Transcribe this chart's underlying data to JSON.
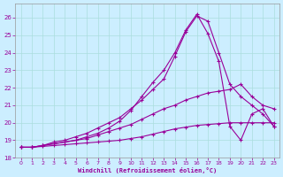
{
  "xlabel": "Windchill (Refroidissement éolien,°C)",
  "bg_color": "#cceeff",
  "grid_color": "#aadddd",
  "line_color": "#990099",
  "xlim": [
    -0.5,
    23.5
  ],
  "ylim": [
    18.0,
    26.8
  ],
  "yticks": [
    18,
    19,
    20,
    21,
    22,
    23,
    24,
    25,
    26
  ],
  "xticks": [
    0,
    1,
    2,
    3,
    4,
    5,
    6,
    7,
    8,
    9,
    10,
    11,
    12,
    13,
    14,
    15,
    16,
    17,
    18,
    19,
    20,
    21,
    22,
    23
  ],
  "lines": [
    {
      "x": [
        0,
        1,
        2,
        3,
        4,
        5,
        6,
        7,
        8,
        9,
        10,
        11,
        12,
        13,
        14,
        15,
        16,
        17,
        18,
        19,
        20,
        21,
        22,
        23
      ],
      "y": [
        18.6,
        18.6,
        18.65,
        18.7,
        18.75,
        18.8,
        18.85,
        18.9,
        18.95,
        19.0,
        19.1,
        19.2,
        19.35,
        19.5,
        19.65,
        19.75,
        19.85,
        19.9,
        19.95,
        20.0,
        20.0,
        20.0,
        20.0,
        20.0
      ]
    },
    {
      "x": [
        0,
        1,
        2,
        3,
        4,
        5,
        6,
        7,
        8,
        9,
        10,
        11,
        12,
        13,
        14,
        15,
        16,
        17,
        18,
        19,
        20,
        21,
        22,
        23
      ],
      "y": [
        18.6,
        18.6,
        18.7,
        18.8,
        18.9,
        19.0,
        19.1,
        19.3,
        19.5,
        19.7,
        19.9,
        20.2,
        20.5,
        20.8,
        21.0,
        21.3,
        21.5,
        21.7,
        21.8,
        21.9,
        22.2,
        21.5,
        21.0,
        20.8
      ]
    },
    {
      "x": [
        0,
        1,
        2,
        3,
        4,
        5,
        6,
        7,
        8,
        9,
        10,
        11,
        12,
        13,
        14,
        15,
        16,
        17,
        18,
        19,
        20,
        21,
        22,
        23
      ],
      "y": [
        18.6,
        18.6,
        18.7,
        18.9,
        19.0,
        19.2,
        19.4,
        19.7,
        20.0,
        20.3,
        20.8,
        21.3,
        21.9,
        22.5,
        23.8,
        25.2,
        26.1,
        25.8,
        24.0,
        22.2,
        21.5,
        21.0,
        20.5,
        19.8
      ]
    },
    {
      "x": [
        0,
        1,
        2,
        3,
        4,
        5,
        6,
        7,
        8,
        9,
        10,
        11,
        12,
        13,
        14,
        15,
        16,
        17,
        18,
        19,
        20,
        21,
        22,
        23
      ],
      "y": [
        18.6,
        18.6,
        18.7,
        18.8,
        18.9,
        19.0,
        19.2,
        19.4,
        19.7,
        20.1,
        20.7,
        21.5,
        22.3,
        23.0,
        24.0,
        25.3,
        26.2,
        25.1,
        23.5,
        19.8,
        19.0,
        20.5,
        20.8,
        19.8
      ]
    }
  ]
}
